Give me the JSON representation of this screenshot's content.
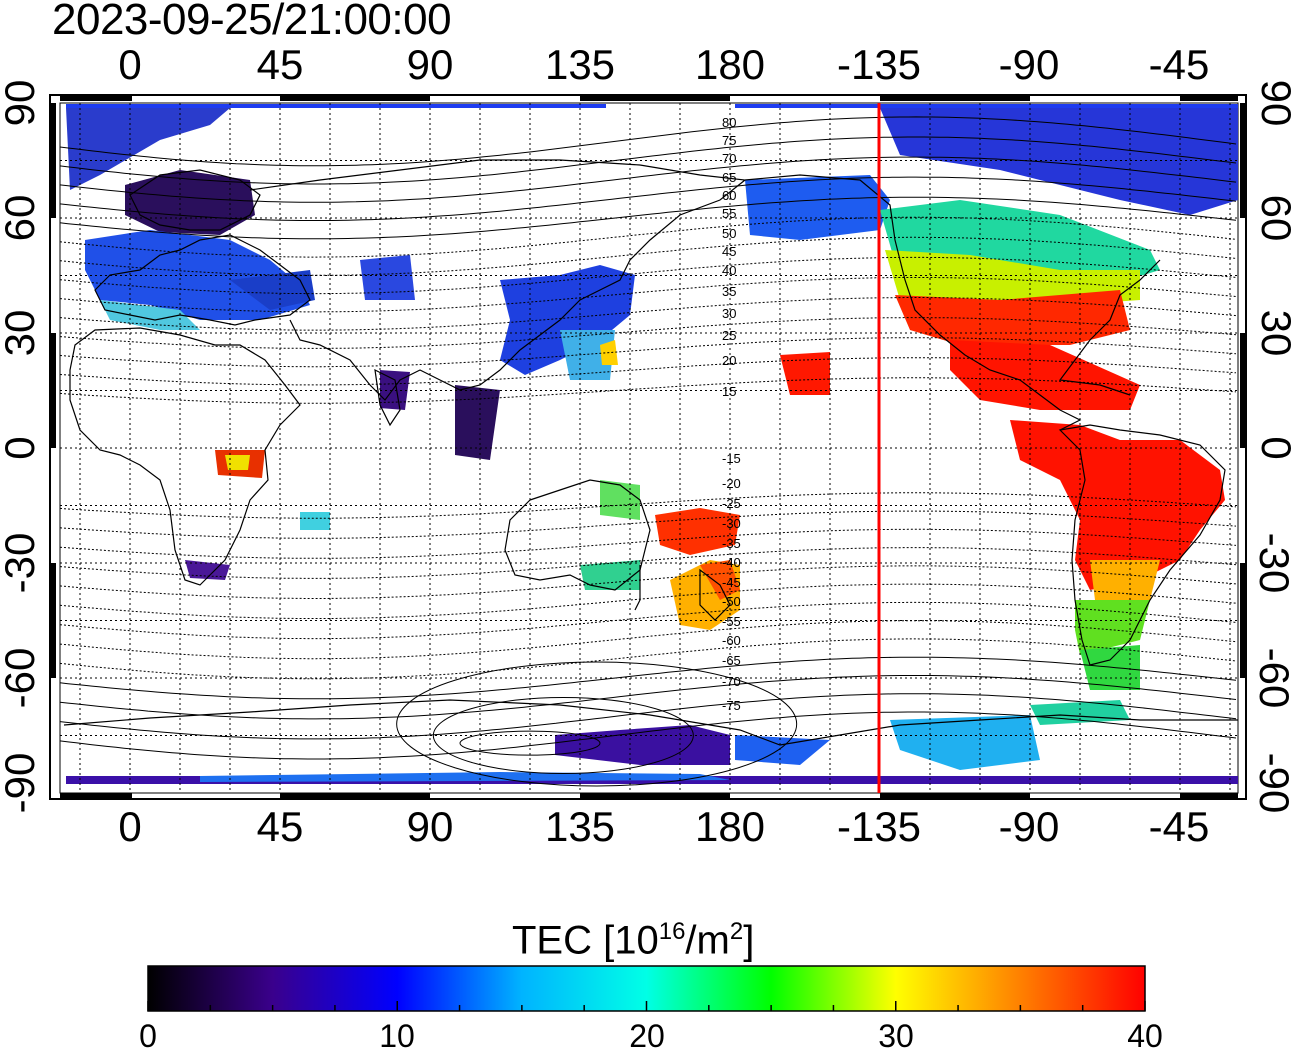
{
  "timestamp": "2023-09-25/21:00:00",
  "lon_ticks_top": [
    "0",
    "45",
    "90",
    "135",
    "180",
    "-135",
    "-90",
    "-45"
  ],
  "lon_ticks_bottom": [
    "0",
    "45",
    "90",
    "135",
    "180",
    "-135",
    "-90",
    "-45"
  ],
  "lat_ticks_left": [
    "90",
    "60",
    "30",
    "0",
    "-30",
    "-60",
    "-90"
  ],
  "lat_ticks_right": [
    "90",
    "60",
    "30",
    "0",
    "-30",
    "-60",
    "-90"
  ],
  "mlat_labels_north": [
    "80",
    "75",
    "70",
    "65",
    "60",
    "55",
    "50",
    "45",
    "40",
    "35",
    "30",
    "25",
    "20",
    "15"
  ],
  "mlat_labels_south": [
    "-15",
    "-20",
    "-25",
    "-30",
    "-35",
    "-40",
    "-45",
    "-50",
    "-55",
    "-60",
    "-65",
    "-70",
    "-75"
  ],
  "colorbar": {
    "title_text": "TEC  [10",
    "title_exp": "16",
    "title_mid": "/m",
    "title_exp2": "2",
    "title_end": "]",
    "min": 0,
    "max": 40,
    "tick_labels": [
      "0",
      "10",
      "20",
      "30",
      "40"
    ],
    "colors": [
      "#000000",
      "#3a008c",
      "#0000ff",
      "#00b4ff",
      "#00ffe6",
      "#00ff00",
      "#ffff00",
      "#ff8000",
      "#ff0000"
    ]
  },
  "terminator_color": "#ff0000",
  "terminator_longitude": -135
}
